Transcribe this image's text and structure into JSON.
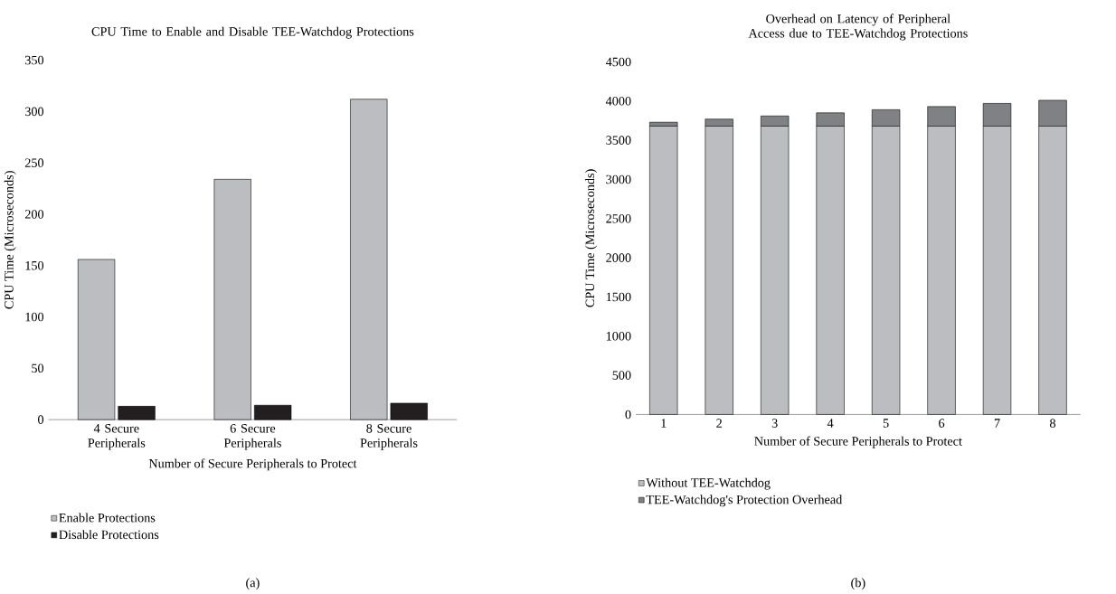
{
  "chart_data": [
    {
      "type": "bar",
      "title": "CPU Time to Enable and Disable TEE-Watchdog Protections",
      "xlabel": "Number of Secure Peripherals to Protect",
      "ylabel": "CPU Time (Microseconds)",
      "categories": [
        "4 Secure Peripherals",
        "6 Secure Peripherals",
        "8 Secure Peripherals"
      ],
      "series": [
        {
          "name": "Enable Protections",
          "color": "#bcbdc0",
          "values": [
            156,
            234,
            312
          ]
        },
        {
          "name": "Disable Protections",
          "color": "#231f20",
          "values": [
            13,
            14,
            16
          ]
        }
      ],
      "ylim": [
        0,
        350
      ],
      "yticks": [
        0,
        50,
        100,
        150,
        200,
        250,
        300,
        350
      ],
      "grid": false,
      "legend": "bottom",
      "annotations": [
        "(a)"
      ]
    },
    {
      "type": "bar",
      "title": "Overhead on Latency of Peripheral Access due to TEE-Watchdog Protections",
      "xlabel": "Number of Secure Peripherals to Protect",
      "ylabel": "CPU Time (Microseconds)",
      "categories": [
        "1",
        "2",
        "3",
        "4",
        "5",
        "6",
        "7",
        "8"
      ],
      "stacked": true,
      "series": [
        {
          "name": "Without TEE-Watchdog",
          "color": "#bcbdc0",
          "values": [
            3680,
            3680,
            3680,
            3680,
            3680,
            3680,
            3680,
            3680
          ]
        },
        {
          "name": "TEE-Watchdog's Protection Overhead",
          "color": "#808184",
          "values": [
            50,
            90,
            130,
            170,
            210,
            250,
            290,
            330
          ]
        }
      ],
      "ylim": [
        0,
        4500
      ],
      "yticks": [
        0,
        500,
        1000,
        1500,
        2000,
        2500,
        3000,
        3500,
        4000,
        4500
      ],
      "grid": false,
      "legend": "bottom",
      "annotations": [
        "(b)"
      ]
    }
  ]
}
